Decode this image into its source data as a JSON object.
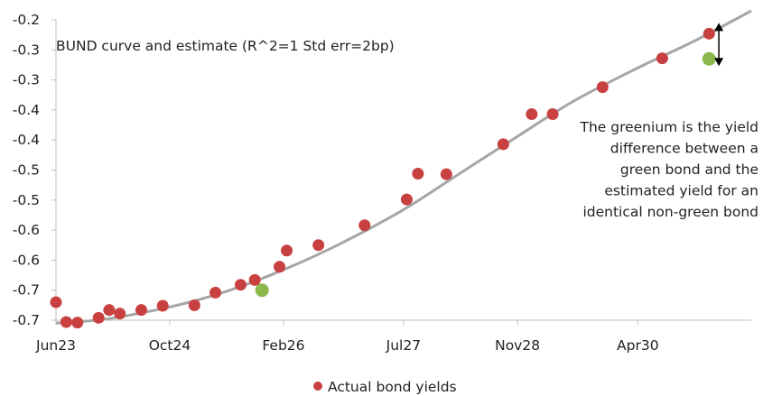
{
  "chart_data": {
    "type": "scatter",
    "title": "BUND curve and estimate (R^2=1 Std err=2bp)",
    "xlabel": "",
    "ylabel": "",
    "x_axis": {
      "type": "date",
      "tick_labels": [
        "Jun23",
        "Oct24",
        "Feb26",
        "Jul27",
        "Nov28",
        "Apr30"
      ],
      "tick_dates": [
        "2023-06-01",
        "2024-10-01",
        "2026-02-01",
        "2027-07-01",
        "2028-11-01",
        "2030-04-01"
      ],
      "range": [
        "2023-06-01",
        "2031-08-01"
      ]
    },
    "y_axis": {
      "tick_labels": [
        "-0.2",
        "-0.3",
        "-0.3",
        "-0.4",
        "-0.4",
        "-0.5",
        "-0.5",
        "-0.6",
        "-0.6",
        "-0.7",
        "-0.7"
      ],
      "tick_values": [
        -0.2,
        -0.25,
        -0.3,
        -0.35,
        -0.4,
        -0.45,
        -0.5,
        -0.55,
        -0.6,
        -0.65,
        -0.7
      ],
      "ylim": [
        -0.7,
        -0.2
      ]
    },
    "grid": false,
    "legend": {
      "position": "bottom-center"
    },
    "series": [
      {
        "name": "Actual bond yields",
        "kind": "scatter",
        "color": "#c94040",
        "points": [
          {
            "x": "2023-06-01",
            "y": -0.67
          },
          {
            "x": "2023-07-15",
            "y": -0.703
          },
          {
            "x": "2023-09-01",
            "y": -0.704
          },
          {
            "x": "2023-12-01",
            "y": -0.696
          },
          {
            "x": "2024-01-15",
            "y": -0.683
          },
          {
            "x": "2024-03-01",
            "y": -0.689
          },
          {
            "x": "2024-06-01",
            "y": -0.683
          },
          {
            "x": "2024-09-01",
            "y": -0.676
          },
          {
            "x": "2025-01-15",
            "y": -0.675
          },
          {
            "x": "2025-04-15",
            "y": -0.654
          },
          {
            "x": "2025-08-01",
            "y": -0.641
          },
          {
            "x": "2025-10-01",
            "y": -0.633
          },
          {
            "x": "2026-01-15",
            "y": -0.611
          },
          {
            "x": "2026-02-15",
            "y": -0.584
          },
          {
            "x": "2026-07-01",
            "y": -0.575
          },
          {
            "x": "2027-01-15",
            "y": -0.542
          },
          {
            "x": "2027-07-15",
            "y": -0.499
          },
          {
            "x": "2027-09-01",
            "y": -0.456
          },
          {
            "x": "2028-01-01",
            "y": -0.457
          },
          {
            "x": "2028-09-01",
            "y": -0.407
          },
          {
            "x": "2029-01-01",
            "y": -0.357
          },
          {
            "x": "2029-04-01",
            "y": -0.357
          },
          {
            "x": "2029-11-01",
            "y": -0.312
          },
          {
            "x": "2030-07-15",
            "y": -0.264
          },
          {
            "x": "2031-02-01",
            "y": -0.223
          }
        ]
      },
      {
        "name": "",
        "kind": "line",
        "color": "#a6a6a6",
        "points": [
          {
            "x": "2023-06-01",
            "y": -0.705
          },
          {
            "x": "2024-01-01",
            "y": -0.698
          },
          {
            "x": "2024-10-01",
            "y": -0.678
          },
          {
            "x": "2025-06-01",
            "y": -0.652
          },
          {
            "x": "2026-02-01",
            "y": -0.616
          },
          {
            "x": "2026-10-01",
            "y": -0.573
          },
          {
            "x": "2027-07-01",
            "y": -0.516
          },
          {
            "x": "2028-03-01",
            "y": -0.455
          },
          {
            "x": "2028-11-01",
            "y": -0.394
          },
          {
            "x": "2029-07-01",
            "y": -0.335
          },
          {
            "x": "2030-04-01",
            "y": -0.28
          },
          {
            "x": "2030-12-01",
            "y": -0.235
          },
          {
            "x": "2031-08-01",
            "y": -0.185
          }
        ]
      },
      {
        "name": "",
        "kind": "scatter",
        "color": "#8cb74c",
        "points": [
          {
            "x": "2025-11-01",
            "y": -0.65
          },
          {
            "x": "2031-02-01",
            "y": -0.265
          }
        ]
      }
    ],
    "annotations": [
      {
        "text_lines": [
          "The greenium is the yield",
          "difference between a",
          "green bond and the",
          "estimated yield for an",
          "identical non-green bond"
        ],
        "arrow": {
          "x": "2031-03-15",
          "y_from": -0.223,
          "y_to": -0.265,
          "style": "double-headed"
        }
      }
    ]
  }
}
